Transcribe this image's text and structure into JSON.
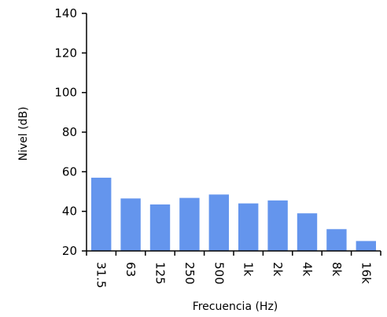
{
  "chart_data": {
    "type": "bar",
    "title": "",
    "xlabel": "Frecuencia (Hz)",
    "ylabel": "Nivel (dB)",
    "categories": [
      "31.5",
      "63",
      "125",
      "250",
      "500",
      "1k",
      "2k",
      "4k",
      "8k",
      "16k"
    ],
    "values": [
      57,
      46.5,
      43.5,
      46.8,
      48.5,
      44,
      45.5,
      39,
      31,
      25
    ],
    "ylim": [
      20,
      140
    ],
    "yticks": [
      "20",
      "40",
      "60",
      "80",
      "100",
      "120",
      "140"
    ],
    "grid": false,
    "legend": "none",
    "bar_color": "#6495ed",
    "axis_color": "#000000"
  }
}
